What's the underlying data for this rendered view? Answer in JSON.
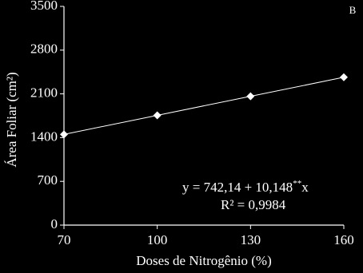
{
  "chart_data": {
    "type": "line",
    "panel_label": "B",
    "xlabel": "Doses de Nitrogênio (%)",
    "ylabel": "Área Foliar (cm²)",
    "x": [
      70,
      100,
      130,
      160
    ],
    "series": [
      {
        "name": "Área Foliar",
        "color": "#ffffff",
        "values": [
          1452,
          1757,
          2061,
          2366
        ]
      }
    ],
    "xlim": [
      70,
      160
    ],
    "xticks": [
      70,
      100,
      130,
      160
    ],
    "ylim": [
      0,
      3500
    ],
    "yticks": [
      0,
      700,
      1400,
      2100,
      2800,
      3500
    ],
    "equation": {
      "text": "y = 742,14 + 10,148",
      "sup": "**",
      "var": "x"
    },
    "r2": "R² = 0,9984"
  }
}
